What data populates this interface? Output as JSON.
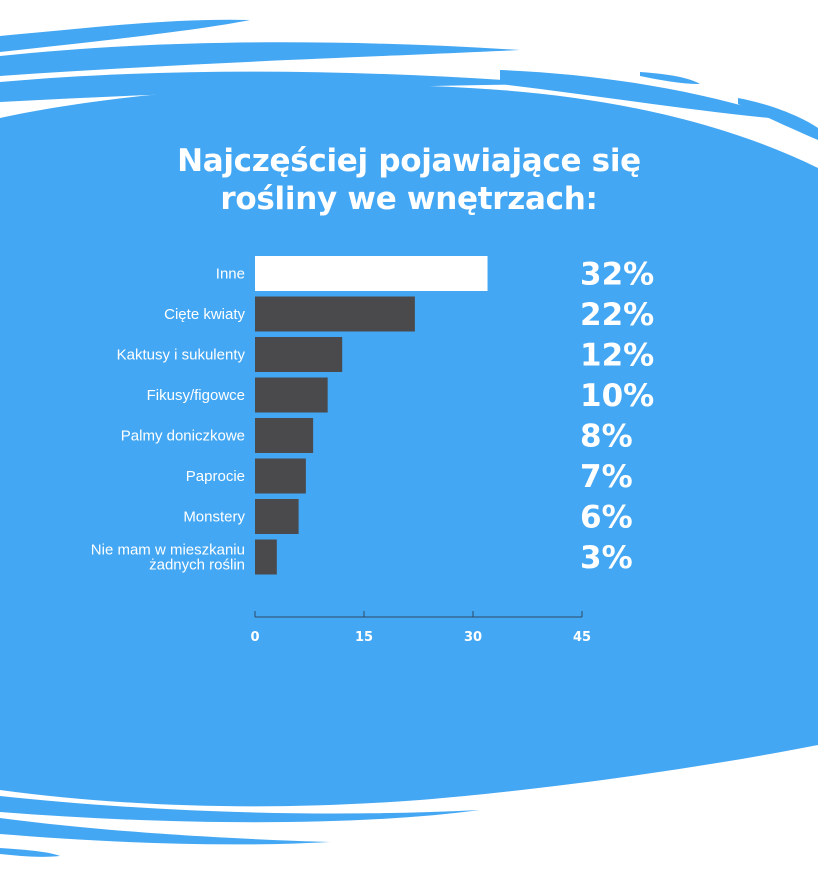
{
  "colors": {
    "background_blue": "#44a7f3",
    "highlight_bar": "#ffffff",
    "bar": "#4a4a4c",
    "text": "#ffffff"
  },
  "title_lines": [
    "Najczęściej pojawiające się",
    "rośliny we wnętrzach:"
  ],
  "chart_data": {
    "type": "bar",
    "orientation": "horizontal",
    "title": "Najczęściej pojawiające się rośliny we wnętrzach:",
    "categories": [
      [
        "Inne"
      ],
      [
        "Cięte kwiaty"
      ],
      [
        "Kaktusy i sukulenty"
      ],
      [
        "Fikusy/figowce"
      ],
      [
        "Palmy doniczkowe"
      ],
      [
        "Paprocie"
      ],
      [
        "Monstery"
      ],
      [
        "Nie mam w mieszkaniu",
        "żadnych roślin"
      ]
    ],
    "values": [
      32,
      22,
      12,
      10,
      8,
      7,
      6,
      3
    ],
    "value_labels": [
      "32%",
      "22%",
      "12%",
      "10%",
      "8%",
      "7%",
      "6%",
      "3%"
    ],
    "highlight_index": 0,
    "xlim": [
      0,
      45
    ],
    "xticks": [
      0,
      15,
      30,
      45
    ],
    "xtick_labels": [
      "0",
      "15",
      "30",
      "45"
    ],
    "xlabel": "",
    "ylabel": "",
    "grid": false,
    "legend": "none"
  }
}
